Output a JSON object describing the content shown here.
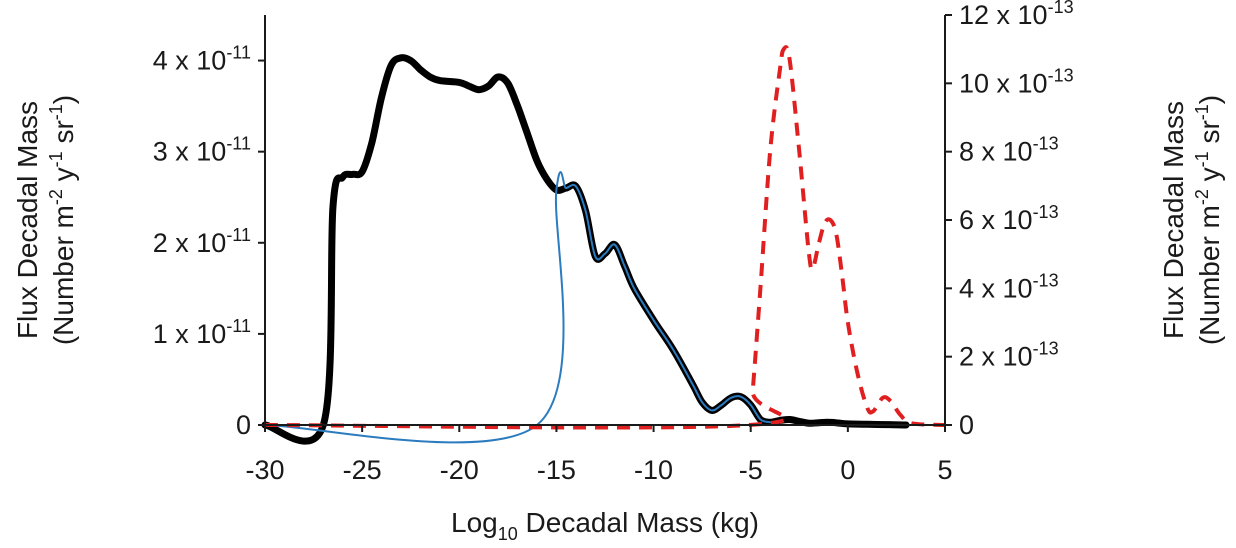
{
  "chart_data": {
    "type": "line",
    "xlabel": "Log10 Decadal Mass (kg)",
    "xlabel_parts": {
      "prefix": "Log",
      "subscript": "10",
      "suffix": " Decadal Mass (kg)"
    },
    "xlim": [
      -30,
      5
    ],
    "x_ticks": [
      "-30",
      "-25",
      "-20",
      "-15",
      "-10",
      "-5",
      "0",
      "5"
    ],
    "ylabel_left": "Flux Decadal Mass (Number m-2 y-1 sr-1)",
    "ylabel_right": "Flux Decadal Mass (Number m-2 y-1 sr-1)",
    "ylabel_parts": {
      "line1": "Flux Decadal Mass",
      "line2_a": "(Number m",
      "sup1": "-2",
      "line2_b": " y",
      "sup2": "-1",
      "line2_c": " sr",
      "sup3": "-1",
      "line2_d": ")"
    },
    "ylim_left": [
      0,
      4.5e-11
    ],
    "y_ticks_left": [
      {
        "value": 0,
        "base": "0",
        "exp": ""
      },
      {
        "value": 1e-11,
        "base": "1 x 10",
        "exp": "-11"
      },
      {
        "value": 2e-11,
        "base": "2 x 10",
        "exp": "-11"
      },
      {
        "value": 3e-11,
        "base": "3 x 10",
        "exp": "-11"
      },
      {
        "value": 4e-11,
        "base": "4 x 10",
        "exp": "-11"
      }
    ],
    "ylim_right": [
      0,
      1.2e-12
    ],
    "y_ticks_right": [
      {
        "value": 0,
        "base": "0",
        "exp": ""
      },
      {
        "value": 2e-13,
        "base": "2 x 10",
        "exp": "-13"
      },
      {
        "value": 4e-13,
        "base": "4 x 10",
        "exp": "-13"
      },
      {
        "value": 6e-13,
        "base": "6 x 10",
        "exp": "-13"
      },
      {
        "value": 8e-13,
        "base": "8 x 10",
        "exp": "-13"
      },
      {
        "value": 1e-12,
        "base": "10 x 10",
        "exp": "-13"
      },
      {
        "value": 1.2e-12,
        "base": "12 x 10",
        "exp": "-13"
      }
    ],
    "grid": false,
    "series": [
      {
        "axis": "left",
        "color": "#000000",
        "style": "solid-thick",
        "points": [
          [
            -30,
            0
          ],
          [
            -27,
            0
          ],
          [
            -26.5,
            2.4e-11
          ],
          [
            -26,
            2.72e-11
          ],
          [
            -25.5,
            2.75e-11
          ],
          [
            -25,
            2.78e-11
          ],
          [
            -24.5,
            3.1e-11
          ],
          [
            -24,
            3.6e-11
          ],
          [
            -23.5,
            3.95e-11
          ],
          [
            -23,
            4.03e-11
          ],
          [
            -22.5,
            4e-11
          ],
          [
            -22,
            3.9e-11
          ],
          [
            -21.5,
            3.82e-11
          ],
          [
            -21,
            3.78e-11
          ],
          [
            -20,
            3.76e-11
          ],
          [
            -19.5,
            3.72e-11
          ],
          [
            -19,
            3.68e-11
          ],
          [
            -18.5,
            3.72e-11
          ],
          [
            -18,
            3.82e-11
          ],
          [
            -17.5,
            3.75e-11
          ],
          [
            -17,
            3.5e-11
          ],
          [
            -16.5,
            3.2e-11
          ],
          [
            -16,
            2.9e-11
          ],
          [
            -15.5,
            2.7e-11
          ],
          [
            -15,
            2.58e-11
          ],
          [
            -14.5,
            2.6e-11
          ],
          [
            -14,
            2.62e-11
          ],
          [
            -13.5,
            2.35e-11
          ],
          [
            -13,
            1.85e-11
          ],
          [
            -12.5,
            1.88e-11
          ],
          [
            -12,
            1.98e-11
          ],
          [
            -11.5,
            1.75e-11
          ],
          [
            -11,
            1.5e-11
          ],
          [
            -10,
            1.15e-11
          ],
          [
            -9,
            8.3e-12
          ],
          [
            -8,
            4.5e-12
          ],
          [
            -7.5,
            2.5e-12
          ],
          [
            -7,
            1.6e-12
          ],
          [
            -6.5,
            2.2e-12
          ],
          [
            -6,
            3e-12
          ],
          [
            -5.5,
            3.1e-12
          ],
          [
            -5,
            2.2e-12
          ],
          [
            -4.5,
            6e-13
          ],
          [
            -4,
            3e-13
          ],
          [
            -3.5,
            5e-13
          ],
          [
            -3,
            6e-13
          ],
          [
            -2.5,
            4e-13
          ],
          [
            -2,
            2e-13
          ],
          [
            -1.5,
            2.5e-13
          ],
          [
            -1,
            3e-13
          ],
          [
            -0.5,
            2.2e-13
          ],
          [
            0,
            1.2e-13
          ],
          [
            1,
            8e-14
          ],
          [
            2,
            4e-14
          ],
          [
            3,
            0
          ]
        ]
      },
      {
        "axis": "left",
        "color": "#2b7bbf",
        "style": "solid-thin",
        "points": [
          [
            -30,
            0
          ],
          [
            -16,
            0
          ],
          [
            -15,
            2.58e-11
          ],
          [
            -14.5,
            2.6e-11
          ],
          [
            -14,
            2.62e-11
          ],
          [
            -13.5,
            2.35e-11
          ],
          [
            -13,
            1.85e-11
          ],
          [
            -12.5,
            1.88e-11
          ],
          [
            -12,
            1.98e-11
          ],
          [
            -11.5,
            1.75e-11
          ],
          [
            -11,
            1.5e-11
          ],
          [
            -10,
            1.15e-11
          ],
          [
            -9,
            8.3e-12
          ],
          [
            -8,
            4.5e-12
          ],
          [
            -7.5,
            2.5e-12
          ],
          [
            -7,
            1.6e-12
          ],
          [
            -6.5,
            2.2e-12
          ],
          [
            -6,
            3e-12
          ],
          [
            -5.5,
            3.1e-12
          ],
          [
            -5,
            2.2e-12
          ],
          [
            -4.5,
            6e-13
          ],
          [
            -4,
            3e-13
          ]
        ]
      },
      {
        "axis": "right",
        "color": "#e02020",
        "style": "dashed",
        "points": [
          [
            -30,
            0
          ],
          [
            -5.1,
            0
          ],
          [
            -4.9,
            1e-13
          ],
          [
            -4.5,
            4e-13
          ],
          [
            -4,
            8e-13
          ],
          [
            -3.5,
            1.04e-12
          ],
          [
            -3.3,
            1.1e-12
          ],
          [
            -3,
            1.07e-12
          ],
          [
            -2.5,
            8e-13
          ],
          [
            -2,
            5e-13
          ],
          [
            -1.8,
            4.6e-13
          ],
          [
            -1.5,
            5.3e-13
          ],
          [
            -1.2,
            5.9e-13
          ],
          [
            -0.9,
            6e-13
          ],
          [
            -0.6,
            5.6e-13
          ],
          [
            -0.3,
            4.4e-13
          ],
          [
            0,
            3e-13
          ],
          [
            0.5,
            1.5e-13
          ],
          [
            1,
            5e-14
          ],
          [
            1.3,
            4e-14
          ],
          [
            1.8,
            8e-14
          ],
          [
            2.2,
            7e-14
          ],
          [
            2.7,
            3e-14
          ],
          [
            3.3,
            5e-15
          ],
          [
            5,
            0
          ]
        ]
      }
    ]
  }
}
